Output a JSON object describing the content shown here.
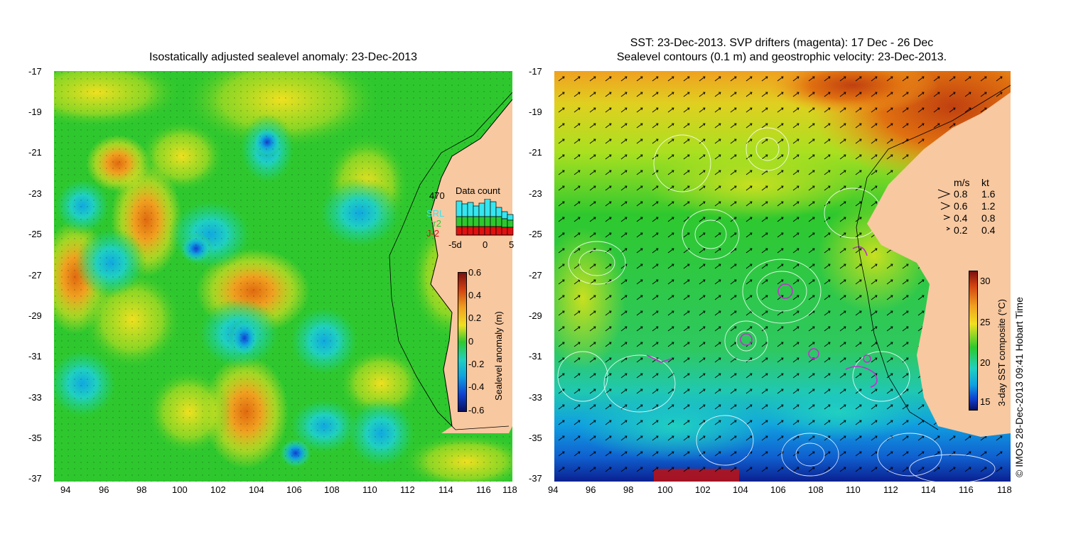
{
  "left_panel": {
    "title": "Isostatically adjusted sealevel anomaly: 23-Dec-2013",
    "lat_ticks": [
      "-17",
      "-19",
      "-21",
      "-23",
      "-25",
      "-27",
      "-29",
      "-31",
      "-33",
      "-35",
      "-37"
    ],
    "lon_ticks": [
      "94",
      "96",
      "98",
      "100",
      "102",
      "104",
      "106",
      "108",
      "110",
      "112",
      "114",
      "116",
      "118"
    ],
    "colorbar": {
      "label": "Sealevel anomaly (m)",
      "ticks": [
        "0.6",
        "0.4",
        "0.2",
        "0",
        "-0.2",
        "-0.4",
        "-0.6"
      ]
    },
    "data_count": {
      "title": "Data count",
      "max": "470",
      "x_ticks": [
        "-5d",
        "0",
        "5"
      ],
      "missions": [
        "SRL",
        "Cr2",
        "J-2"
      ],
      "mission_colors": [
        "#35e6f0",
        "#2ec82e",
        "#e01010"
      ]
    }
  },
  "right_panel": {
    "title_line1": "SST: 23-Dec-2013. SVP drifters (magenta): 17 Dec - 26 Dec",
    "title_line2": "Sealevel contours (0.1 m) and geostrophic velocity: 23-Dec-2013.",
    "lat_ticks": [
      "-17",
      "-19",
      "-21",
      "-23",
      "-25",
      "-27",
      "-29",
      "-31",
      "-33",
      "-35",
      "-37"
    ],
    "lon_ticks": [
      "94",
      "96",
      "98",
      "100",
      "102",
      "104",
      "106",
      "108",
      "110",
      "112",
      "114",
      "116",
      "118"
    ],
    "speed_legend": {
      "header_ms": "m/s",
      "header_kt": "kt",
      "rows": [
        {
          "ms": "0.8",
          "kt": "1.6"
        },
        {
          "ms": "0.6",
          "kt": "1.2"
        },
        {
          "ms": "0.4",
          "kt": "0.8"
        },
        {
          "ms": "0.2",
          "kt": "0.4"
        }
      ]
    },
    "colorbar": {
      "label": "3-day SST composite (°C)",
      "ticks": [
        "30",
        "25",
        "20",
        "15"
      ]
    }
  },
  "copyright": "© IMOS 28-Dec-2013 09:41 Hobart Time",
  "colors": {
    "land": "#f8c8a0",
    "ssla_mid": "#2ec82e",
    "sst_warm": "#c84010",
    "sst_cold": "#1030c0",
    "drifters": "#c030d0"
  }
}
